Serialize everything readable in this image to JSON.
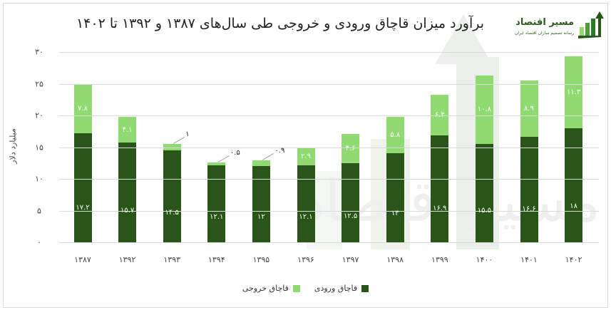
{
  "header": {
    "title": "برآورد میزان قاچاق ورودی و خروجی طی سال‌های ۱۳۸۷ و ۱۳۹۲ تا ۱۴۰۲",
    "logo_name": "مسیر اقتصاد",
    "logo_tagline": "رسانه تصمیم سازان اقتصاد ایران"
  },
  "colors": {
    "inbound": "#2a5519",
    "outbound": "#8fda71",
    "grid": "#d9d9d9"
  },
  "chart_data": {
    "type": "bar",
    "stacked": true,
    "title": "برآورد میزان قاچاق ورودی و خروجی طی سال‌های ۱۳۸۷ و ۱۳۹۲ تا ۱۴۰۲",
    "xlabel": "",
    "ylabel": "میلیارد دلار",
    "ylim": [
      0,
      30
    ],
    "yticks": [
      0,
      5,
      10,
      15,
      20,
      25,
      30
    ],
    "ytick_labels": [
      "۰",
      "۵",
      "۱۰",
      "۱۵",
      "۲۰",
      "۲۵",
      "۳۰"
    ],
    "categories": [
      "۱۳۸۷",
      "۱۳۹۲",
      "۱۳۹۳",
      "۱۳۹۴",
      "۱۳۹۵",
      "۱۳۹۶",
      "۱۳۹۷",
      "۱۳۹۸",
      "۱۳۹۹",
      "۱۴۰۰",
      "۱۴۰۱",
      "۱۴۰۲"
    ],
    "series": [
      {
        "name": "قاچاق ورودی",
        "color": "#2a5519",
        "values": [
          17.2,
          15.7,
          14.5,
          12.1,
          12,
          12.1,
          12.5,
          14,
          16.9,
          15.5,
          16.6,
          18
        ],
        "labels": [
          "۱۷.۲",
          "۱۵.۷",
          "۱۴.۵",
          "۱۲.۱",
          "۱۲",
          "۱۲.۱",
          "۱۲.۵",
          "۱۴",
          "۱۶.۹",
          "۱۵.۵",
          "۱۶.۶",
          "۱۸"
        ]
      },
      {
        "name": "قاچاق خروجی",
        "color": "#8fda71",
        "values": [
          7.8,
          4.1,
          1,
          0.5,
          0.9,
          2.9,
          4.6,
          5.8,
          6.4,
          10.8,
          8.9,
          11.3
        ],
        "labels": [
          "۷.۸",
          "۴.۱",
          "۱",
          "۰.۵",
          "۰.۹",
          "۲.۹",
          "۴.۶",
          "۵.۸",
          "۶.۴",
          "۱۰.۸",
          "۸.۹",
          "۱۱.۳"
        ]
      }
    ],
    "grid": true,
    "legend_position": "bottom"
  },
  "legend": {
    "items": [
      {
        "label": "قاچاق ورودی",
        "color": "#2a5519"
      },
      {
        "label": "قاچاق خروجی",
        "color": "#8fda71"
      }
    ]
  }
}
